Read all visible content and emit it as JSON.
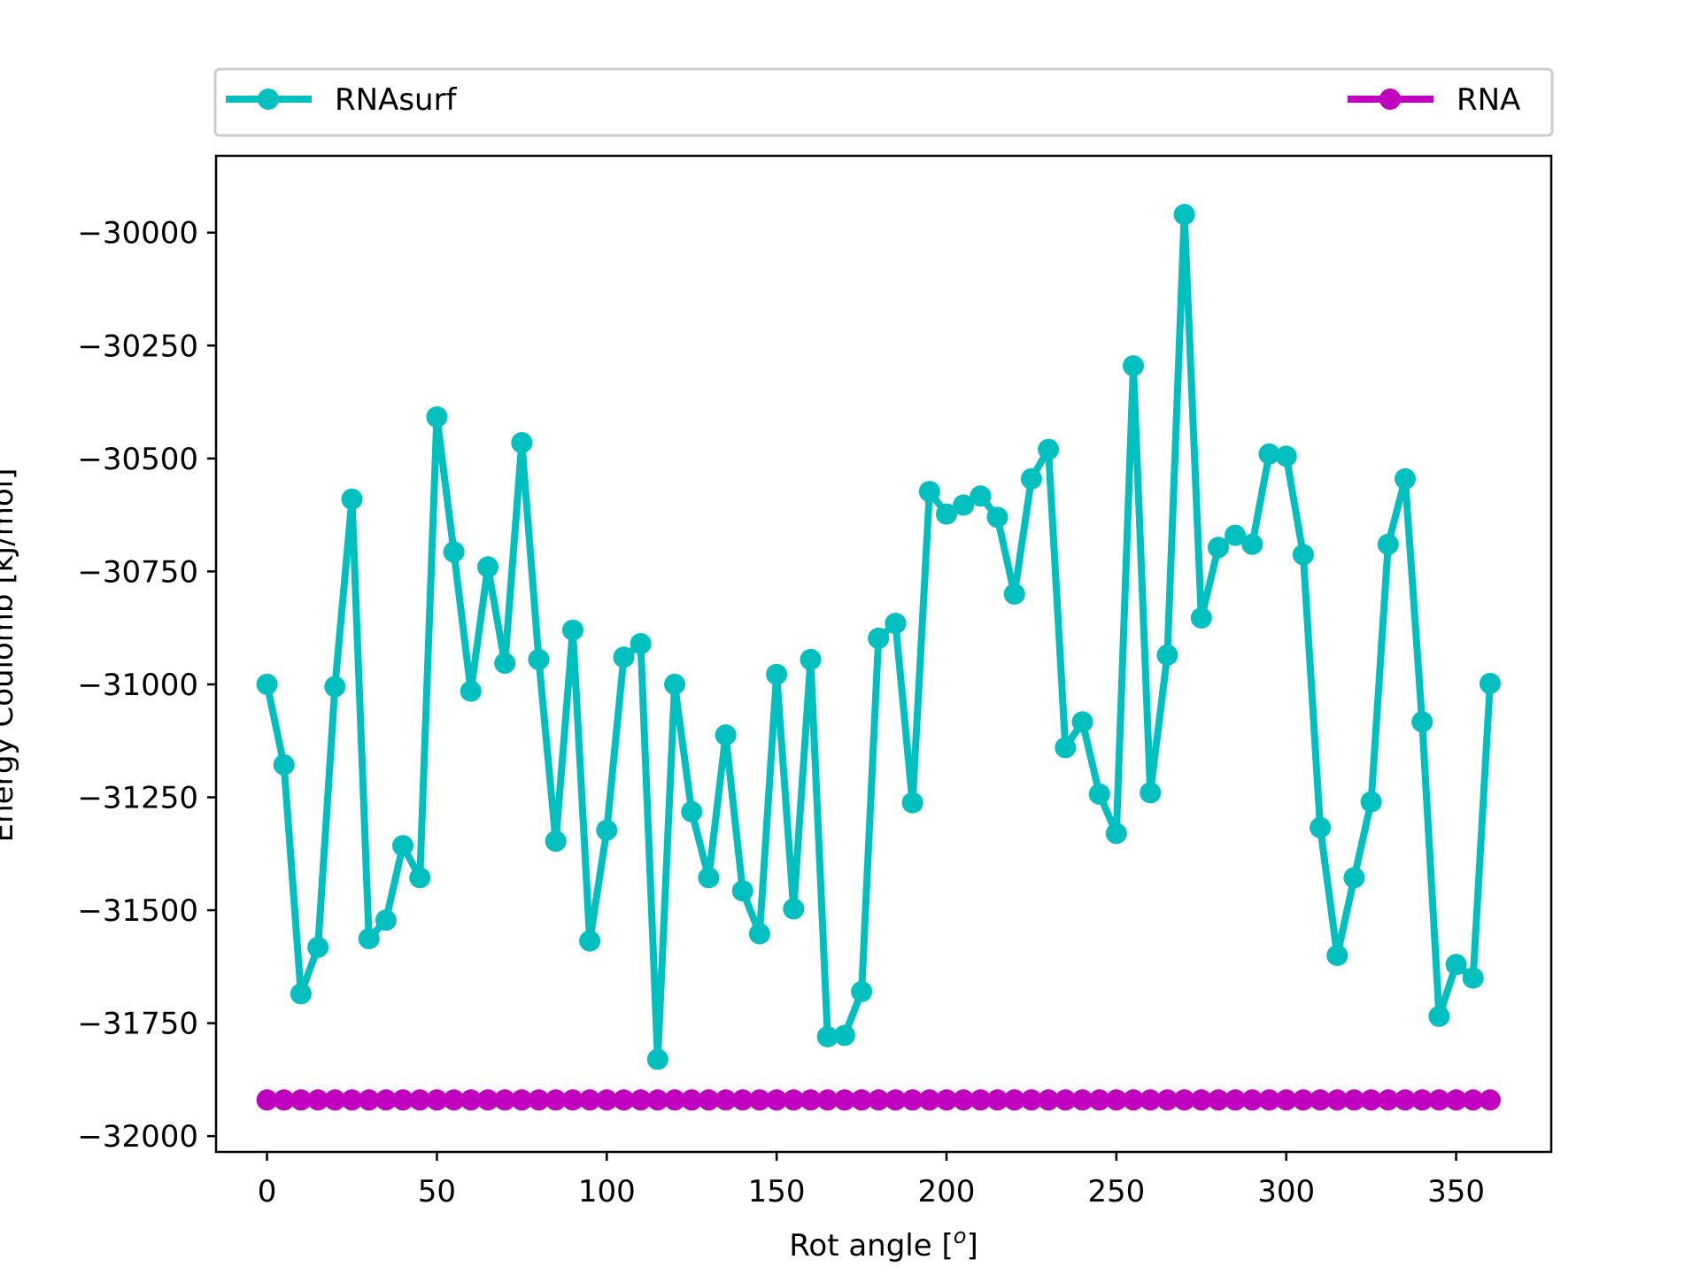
{
  "chart_data": {
    "type": "line",
    "title": "",
    "xlabel": "Rot angle [",
    "xlabel_sup": "o",
    "xlabel_end": "]",
    "ylabel": "Energy Coulomb [kJ/mol]",
    "xlim": [
      -15,
      378
    ],
    "ylim": [
      -32035,
      -29830
    ],
    "xticks": [
      0,
      50,
      100,
      150,
      200,
      250,
      300,
      350
    ],
    "yticks": [
      -30000,
      -30250,
      -30500,
      -30750,
      -31000,
      -31250,
      -31500,
      -31750,
      -32000
    ],
    "xtick_labels": [
      "0",
      "50",
      "100",
      "150",
      "200",
      "250",
      "300",
      "350"
    ],
    "ytick_labels": [
      "−30000",
      "−30250",
      "−30500",
      "−30750",
      "−31000",
      "−31250",
      "−31500",
      "−31750",
      "−32000"
    ],
    "legend_placement": "top, above plot, two columns",
    "grid": false,
    "x": [
      0,
      5,
      10,
      15,
      20,
      25,
      30,
      35,
      40,
      45,
      50,
      55,
      60,
      65,
      70,
      75,
      80,
      85,
      90,
      95,
      100,
      105,
      110,
      115,
      120,
      125,
      130,
      135,
      140,
      145,
      150,
      155,
      160,
      165,
      170,
      175,
      180,
      185,
      190,
      195,
      200,
      205,
      210,
      215,
      220,
      225,
      230,
      235,
      240,
      245,
      250,
      255,
      260,
      265,
      270,
      275,
      280,
      285,
      290,
      295,
      300,
      305,
      310,
      315,
      320,
      325,
      330,
      335,
      340,
      345,
      350,
      355,
      360
    ],
    "series": [
      {
        "name": "RNAsurf",
        "color": "#00bfbf",
        "values": [
          -31000,
          -31178,
          -31685,
          -31582,
          -31005,
          -30590,
          -31563,
          -31522,
          -31357,
          -31428,
          -30408,
          -30707,
          -31015,
          -30740,
          -30953,
          -30465,
          -30945,
          -31347,
          -30880,
          -31568,
          -31323,
          -30940,
          -30910,
          -31830,
          -31000,
          -31282,
          -31428,
          -31112,
          -31457,
          -31552,
          -30978,
          -31497,
          -30945,
          -31780,
          -31777,
          -31680,
          -30898,
          -30865,
          -31262,
          -30573,
          -30623,
          -30603,
          -30583,
          -30630,
          -30800,
          -30545,
          -30480,
          -31140,
          -31083,
          -31243,
          -31330,
          -30295,
          -31240,
          -30935,
          -29960,
          -30853,
          -30697,
          -30670,
          -30690,
          -30490,
          -30495,
          -30713,
          -31317,
          -31600,
          -31428,
          -31260,
          -30690,
          -30545,
          -31083,
          -31735,
          -31620,
          -31650,
          -30998
        ]
      },
      {
        "name": "RNA",
        "color": "#bf00bf",
        "values": [
          -31920,
          -31920,
          -31920,
          -31920,
          -31920,
          -31920,
          -31920,
          -31920,
          -31920,
          -31920,
          -31920,
          -31920,
          -31920,
          -31920,
          -31920,
          -31920,
          -31920,
          -31920,
          -31920,
          -31920,
          -31920,
          -31920,
          -31920,
          -31920,
          -31920,
          -31920,
          -31920,
          -31920,
          -31920,
          -31920,
          -31920,
          -31920,
          -31920,
          -31920,
          -31920,
          -31920,
          -31920,
          -31920,
          -31920,
          -31920,
          -31920,
          -31920,
          -31920,
          -31920,
          -31920,
          -31920,
          -31920,
          -31920,
          -31920,
          -31920,
          -31920,
          -31920,
          -31920,
          -31920,
          -31920,
          -31920,
          -31920,
          -31920,
          -31920,
          -31920,
          -31920,
          -31920,
          -31920,
          -31920,
          -31920,
          -31920,
          -31920,
          -31920,
          -31920,
          -31920,
          -31920,
          -31920,
          -31920
        ]
      }
    ]
  }
}
